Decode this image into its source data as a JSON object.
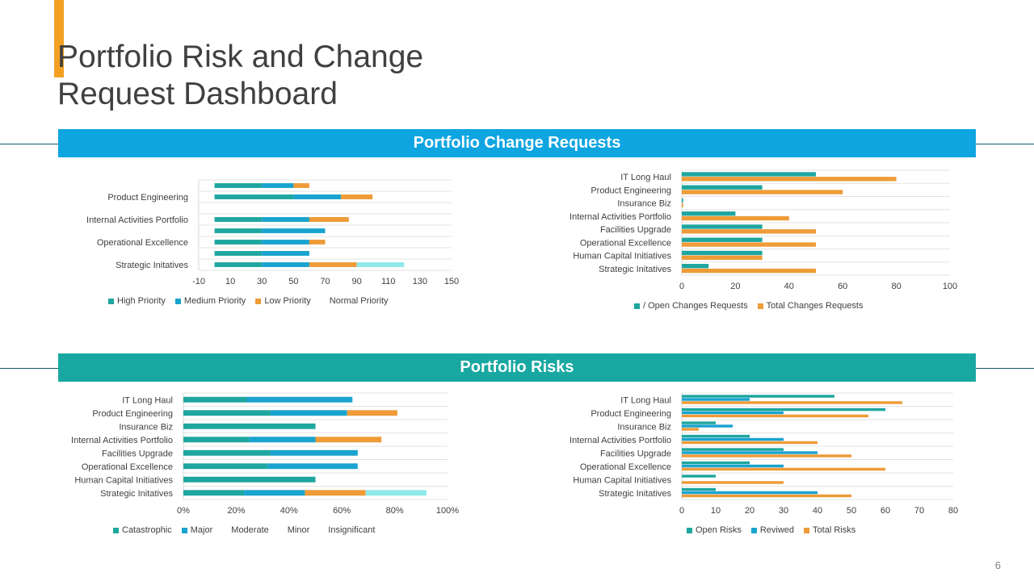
{
  "title": "Portfolio Risk and Change Request Dashboard",
  "page_number": "6",
  "colors": {
    "accent": "#f4a024",
    "banner_blue": "#0ea5e1",
    "banner_teal": "#18a8a1",
    "teal": "#1ea69f",
    "blue": "#1aa3cf",
    "orange": "#ee9b38",
    "light_cyan": "#8fe8ea"
  },
  "sections": {
    "change_requests": {
      "title": "Portfolio Change Requests"
    },
    "risks": {
      "title": "Portfolio Risks"
    }
  },
  "chart_data": [
    {
      "id": "change-priority",
      "type": "bar",
      "orientation": "horizontal",
      "stacked": true,
      "categories": [
        "Strategic Initatives",
        "",
        "Operational Excellence",
        "",
        "Internal Activities Portfolio",
        "",
        "Product Engineering",
        ""
      ],
      "series": [
        {
          "name": "High Priority",
          "color": "#1ea69f",
          "values": [
            30,
            30,
            30,
            30,
            30,
            0,
            50,
            30
          ]
        },
        {
          "name": "Medium Priority",
          "color": "#1aa3cf",
          "values": [
            30,
            30,
            30,
            40,
            30,
            0,
            30,
            20
          ]
        },
        {
          "name": "Low Priority",
          "color": "#ee9b38",
          "values": [
            30,
            0,
            10,
            0,
            25,
            0,
            20,
            10
          ]
        },
        {
          "name": "Normal Priority",
          "color": "#8fe8ea",
          "values": [
            30,
            0,
            0,
            0,
            0,
            0,
            0,
            0
          ]
        }
      ],
      "xlim": [
        -10,
        150
      ],
      "ticks": [
        -10,
        10,
        30,
        50,
        70,
        90,
        110,
        130,
        150
      ]
    },
    {
      "id": "change-requests",
      "type": "bar",
      "orientation": "horizontal",
      "stacked": false,
      "categories": [
        "Strategic Initatives",
        "Human Capital Initiatives",
        "Operational Excellence",
        "Facilities Upgrade",
        "Internal Activities Portfolio",
        "Insurance Biz",
        "Product Engineering",
        "IT Long Haul"
      ],
      "series": [
        {
          "name": "/ Open Changes Requests",
          "color": "#1ea69f",
          "values": [
            10,
            30,
            30,
            30,
            20,
            0.5,
            30,
            50
          ]
        },
        {
          "name": "Total Changes Requests",
          "color": "#ee9b38",
          "values": [
            50,
            30,
            50,
            50,
            40,
            0.5,
            60,
            80
          ]
        }
      ],
      "xlim": [
        0,
        100
      ],
      "ticks": [
        0,
        20,
        40,
        60,
        80,
        100
      ]
    },
    {
      "id": "risk-severity",
      "type": "bar",
      "orientation": "horizontal",
      "stacked": true,
      "percent": true,
      "categories": [
        "Strategic Initatives",
        "Human Capital Initiatives",
        "Operational Excellence",
        "Facilities Upgrade",
        "Internal Activities Portfolio",
        "Insurance Biz",
        "Product Engineering",
        "IT Long Haul"
      ],
      "series": [
        {
          "name": "Catastrophic",
          "color": "#1ea69f",
          "values": [
            23,
            50,
            32,
            33,
            25,
            50,
            33,
            24
          ]
        },
        {
          "name": "Major",
          "color": "#1aa3cf",
          "values": [
            23,
            0,
            34,
            33,
            25,
            0,
            29,
            40
          ]
        },
        {
          "name": "Moderate",
          "color": "#ee9b38",
          "values": [
            23,
            0,
            0,
            0,
            25,
            0,
            19,
            0
          ]
        },
        {
          "name": "Minor",
          "color": "#8fe8ea",
          "values": [
            23,
            0,
            0,
            0,
            0,
            0,
            0,
            0
          ]
        },
        {
          "name": "Insignificant",
          "color": "#ffffff",
          "values": [
            0,
            0,
            0,
            0,
            0,
            0,
            0,
            0
          ]
        }
      ],
      "xlim": [
        0,
        100
      ],
      "ticks": [
        0,
        20,
        40,
        60,
        80,
        100
      ]
    },
    {
      "id": "risk-counts",
      "type": "bar",
      "orientation": "horizontal",
      "stacked": false,
      "categories": [
        "Strategic Initatives",
        "Human Capital Initiatives",
        "Operational Excellence",
        "Facilities Upgrade",
        "Internal Activities Portfolio",
        "Insurance Biz",
        "Product Engineering",
        "IT Long Haul"
      ],
      "series": [
        {
          "name": "Open Risks",
          "color": "#1ea69f",
          "values": [
            10,
            10,
            20,
            30,
            20,
            10,
            60,
            45
          ]
        },
        {
          "name": "Reviwed",
          "color": "#1aa3cf",
          "values": [
            40,
            0,
            30,
            40,
            30,
            15,
            30,
            20
          ]
        },
        {
          "name": "Total Risks",
          "color": "#ee9b38",
          "values": [
            50,
            30,
            60,
            50,
            40,
            5,
            55,
            65
          ]
        }
      ],
      "xlim": [
        0,
        80
      ],
      "ticks": [
        0,
        10,
        20,
        30,
        40,
        50,
        60,
        70,
        80
      ]
    }
  ]
}
